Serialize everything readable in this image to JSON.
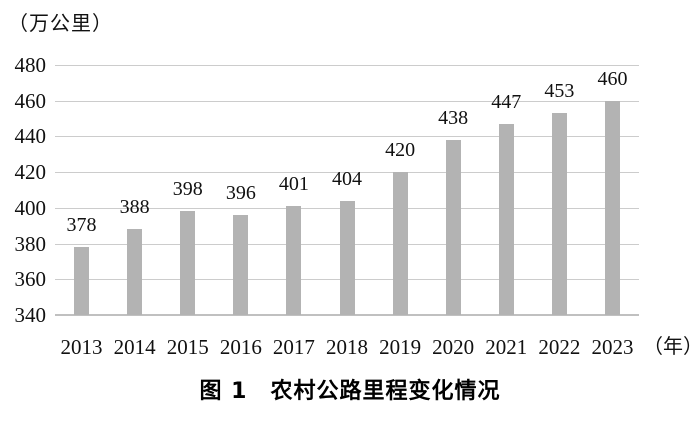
{
  "figure": {
    "unit_label": "（万公里）",
    "axis_year_suffix": "（年）",
    "caption": "图 1　农村公路里程变化情况"
  },
  "chart_data": {
    "type": "bar",
    "title": "图 1 农村公路里程变化情况",
    "categories": [
      "2013",
      "2014",
      "2015",
      "2016",
      "2017",
      "2018",
      "2019",
      "2020",
      "2021",
      "2022",
      "2023"
    ],
    "values": [
      378,
      388,
      398,
      396,
      401,
      404,
      420,
      438,
      447,
      453,
      460
    ],
    "xlabel": "年",
    "ylabel": "万公里",
    "ylim": [
      340,
      480
    ],
    "yticks": [
      340,
      360,
      380,
      400,
      420,
      440,
      460,
      480
    ],
    "grid": true,
    "legend_position": "none",
    "data_labels": true,
    "bar_color": "#b3b3b3",
    "gridline_color": "#cccccc",
    "baseline_color": "#c0c0c0",
    "text_color": "#111111"
  }
}
